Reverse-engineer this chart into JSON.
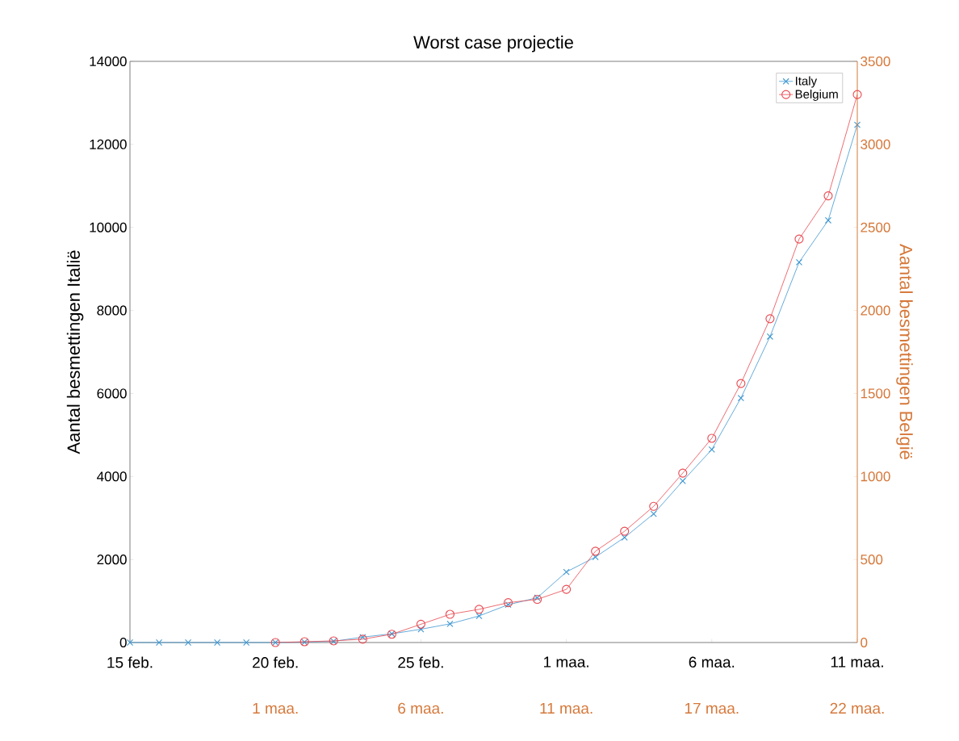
{
  "chart_data": {
    "type": "line",
    "title": "Worst case projectie",
    "ylabel": "Aantal besmettingen Italië",
    "y2label": "Aantal besmettingen België",
    "categories": [
      "15 feb.",
      null,
      null,
      null,
      null,
      "20 feb.",
      null,
      null,
      null,
      null,
      "25 feb.",
      null,
      null,
      null,
      null,
      "1 maa.",
      null,
      null,
      null,
      null,
      "6 maa.",
      null,
      null,
      null,
      null,
      "11 maa."
    ],
    "annotations": [
      "1 maa.",
      "6 maa.",
      "11 maa.",
      "17 maa.",
      "22 maa."
    ],
    "ylim": [
      0,
      14000
    ],
    "yticks": [
      0,
      2000,
      4000,
      6000,
      8000,
      10000,
      12000,
      14000
    ],
    "y2lim": [
      0,
      3500
    ],
    "y2ticks": [
      0,
      500,
      1000,
      1500,
      2000,
      2500,
      3000,
      3500
    ],
    "legend": "top right",
    "series": [
      {
        "name": "Italy",
        "color": "#3f97d0",
        "marker": "cross",
        "values": [
          0,
          0,
          0,
          0,
          0,
          0,
          10,
          30,
          130,
          210,
          320,
          450,
          640,
          910,
          1080,
          1700,
          2060,
          2530,
          3100,
          3890,
          4650,
          5890,
          7370,
          9160,
          10170,
          12470
        ]
      },
      {
        "name": "Belgium",
        "color": "#e8474f",
        "marker": "circle",
        "axis": "y2",
        "values": [
          null,
          null,
          null,
          null,
          null,
          0,
          5,
          10,
          20,
          50,
          110,
          170,
          200,
          240,
          260,
          320,
          550,
          670,
          820,
          1020,
          1230,
          1560,
          1950,
          2430,
          2690,
          3300
        ]
      }
    ]
  }
}
